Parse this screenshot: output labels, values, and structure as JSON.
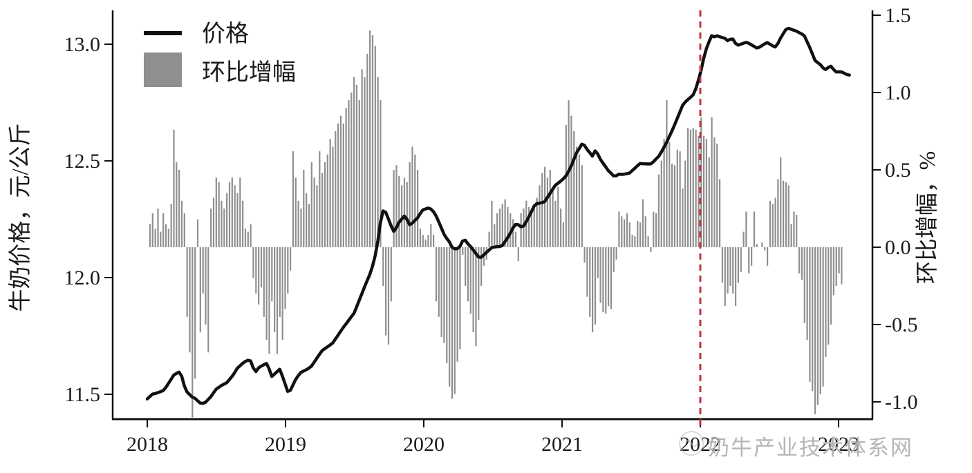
{
  "watermark": {
    "text": "奶牛产业技术体系网"
  },
  "chart_data": {
    "type": "composite",
    "subtype": [
      "line",
      "bar"
    ],
    "title": "",
    "left_axis": {
      "label": "牛奶价格，元/公斤",
      "tick_labels": [
        "13.0",
        "12.5",
        "12.0",
        "11.5"
      ],
      "ticks": [
        13.0,
        12.5,
        12.0,
        11.5
      ],
      "range": [
        11.39,
        13.15
      ]
    },
    "right_axis": {
      "label": "环比增幅，%",
      "tick_labels": [
        "1.5",
        "1.0",
        "0.5",
        "0.0",
        "-0.5",
        "-1.0"
      ],
      "ticks": [
        1.5,
        1.0,
        0.5,
        0.0,
        -0.5,
        -1.0
      ],
      "range": [
        -1.11,
        1.53
      ]
    },
    "x_axis": {
      "tick_labels": [
        "2018",
        "2019",
        "2020",
        "2021",
        "2022",
        "2023"
      ],
      "ticks": [
        2018,
        2019,
        2020,
        2021,
        2022,
        2023
      ],
      "range": [
        2017.75,
        2023.27
      ]
    },
    "legend": [
      {
        "label": "价格",
        "type": "line",
        "color": "#111111"
      },
      {
        "label": "环比增幅",
        "type": "bar",
        "color": "#8f8f8f"
      }
    ],
    "vline": {
      "x": 2022.0,
      "color": "#c2333d",
      "style": "dashed"
    },
    "grid": false,
    "price_series": {
      "name": "价格",
      "unit": "元/公斤",
      "points": [
        [
          2018.0,
          11.48
        ],
        [
          2018.06,
          11.5
        ],
        [
          2018.13,
          11.53
        ],
        [
          2018.2,
          11.58
        ],
        [
          2018.24,
          11.6
        ],
        [
          2018.28,
          11.52
        ],
        [
          2018.33,
          11.48
        ],
        [
          2018.39,
          11.46
        ],
        [
          2018.46,
          11.49
        ],
        [
          2018.54,
          11.54
        ],
        [
          2018.62,
          11.58
        ],
        [
          2018.7,
          11.64
        ],
        [
          2018.74,
          11.66
        ],
        [
          2018.78,
          11.59
        ],
        [
          2018.83,
          11.62
        ],
        [
          2018.87,
          11.64
        ],
        [
          2018.9,
          11.58
        ],
        [
          2018.96,
          11.6
        ],
        [
          2019.0,
          11.54
        ],
        [
          2019.02,
          11.51
        ],
        [
          2019.08,
          11.57
        ],
        [
          2019.16,
          11.61
        ],
        [
          2019.25,
          11.67
        ],
        [
          2019.33,
          11.72
        ],
        [
          2019.42,
          11.78
        ],
        [
          2019.5,
          11.86
        ],
        [
          2019.57,
          11.95
        ],
        [
          2019.62,
          12.03
        ],
        [
          2019.66,
          12.13
        ],
        [
          2019.69,
          12.25
        ],
        [
          2019.71,
          12.29
        ],
        [
          2019.75,
          12.24
        ],
        [
          2019.78,
          12.2
        ],
        [
          2019.82,
          12.24
        ],
        [
          2019.86,
          12.26
        ],
        [
          2019.9,
          12.22
        ],
        [
          2019.95,
          12.26
        ],
        [
          2019.99,
          12.29
        ],
        [
          2020.06,
          12.29
        ],
        [
          2020.1,
          12.26
        ],
        [
          2020.15,
          12.18
        ],
        [
          2020.21,
          12.12
        ],
        [
          2020.25,
          12.13
        ],
        [
          2020.29,
          12.17
        ],
        [
          2020.33,
          12.13
        ],
        [
          2020.4,
          12.09
        ],
        [
          2020.46,
          12.11
        ],
        [
          2020.52,
          12.13
        ],
        [
          2020.56,
          12.14
        ],
        [
          2020.62,
          12.18
        ],
        [
          2020.67,
          12.23
        ],
        [
          2020.71,
          12.22
        ],
        [
          2020.75,
          12.25
        ],
        [
          2020.81,
          12.31
        ],
        [
          2020.87,
          12.33
        ],
        [
          2020.94,
          12.38
        ],
        [
          2021.0,
          12.42
        ],
        [
          2021.06,
          12.47
        ],
        [
          2021.1,
          12.52
        ],
        [
          2021.15,
          12.58
        ],
        [
          2021.19,
          12.55
        ],
        [
          2021.22,
          12.52
        ],
        [
          2021.24,
          12.54
        ],
        [
          2021.28,
          12.5
        ],
        [
          2021.33,
          12.47
        ],
        [
          2021.38,
          12.43
        ],
        [
          2021.44,
          12.44
        ],
        [
          2021.5,
          12.46
        ],
        [
          2021.56,
          12.48
        ],
        [
          2021.62,
          12.49
        ],
        [
          2021.66,
          12.5
        ],
        [
          2021.71,
          12.52
        ],
        [
          2021.75,
          12.57
        ],
        [
          2021.79,
          12.63
        ],
        [
          2021.84,
          12.69
        ],
        [
          2021.88,
          12.74
        ],
        [
          2021.92,
          12.77
        ],
        [
          2021.96,
          12.8
        ],
        [
          2022.0,
          12.87
        ],
        [
          2022.04,
          12.97
        ],
        [
          2022.08,
          13.04
        ],
        [
          2022.12,
          13.04
        ],
        [
          2022.17,
          13.02
        ],
        [
          2022.2,
          13.01
        ],
        [
          2022.23,
          13.03
        ],
        [
          2022.27,
          13.0
        ],
        [
          2022.35,
          13.0
        ],
        [
          2022.42,
          12.99
        ],
        [
          2022.48,
          13.0
        ],
        [
          2022.54,
          12.99
        ],
        [
          2022.58,
          13.03
        ],
        [
          2022.62,
          13.06
        ],
        [
          2022.67,
          13.06
        ],
        [
          2022.71,
          13.06
        ],
        [
          2022.75,
          13.04
        ],
        [
          2022.79,
          12.98
        ],
        [
          2022.83,
          12.93
        ],
        [
          2022.87,
          12.92
        ],
        [
          2022.9,
          12.89
        ],
        [
          2022.94,
          12.9
        ],
        [
          2022.98,
          12.88
        ],
        [
          2023.02,
          12.89
        ],
        [
          2023.06,
          12.87
        ],
        [
          2023.09,
          12.86
        ]
      ]
    },
    "mom_growth_bars": {
      "name": "环比增幅",
      "unit": "%",
      "start_year": 2018.02,
      "step_weeks": 1,
      "values": [
        0.15,
        0.22,
        0.12,
        0.25,
        0.1,
        0.22,
        0.15,
        0.12,
        0.28,
        0.76,
        0.55,
        0.5,
        0.3,
        0.22,
        -0.45,
        -0.68,
        -1.1,
        -0.85,
        0.18,
        -0.55,
        -0.3,
        -0.5,
        -0.68,
        0.25,
        0.32,
        0.45,
        0.42,
        0.3,
        0.25,
        0.35,
        0.42,
        0.45,
        0.4,
        0.35,
        0.45,
        0.3,
        0.12,
        0.1,
        0.15,
        -0.2,
        -0.3,
        -0.37,
        -0.26,
        -0.45,
        -0.6,
        -0.69,
        -0.35,
        -0.55,
        -0.69,
        -0.45,
        -0.6,
        -0.4,
        -0.3,
        -0.15,
        0.62,
        0.45,
        0.3,
        0.25,
        0.5,
        0.35,
        0.28,
        0.55,
        0.45,
        0.4,
        0.62,
        0.48,
        0.55,
        0.6,
        0.7,
        0.65,
        0.75,
        0.8,
        0.85,
        0.8,
        0.9,
        0.95,
        1.0,
        1.1,
        1.05,
        0.95,
        1.15,
        1.1,
        1.25,
        1.4,
        1.37,
        1.3,
        1.1,
        0.95,
        -0.25,
        -0.57,
        -0.63,
        -0.35,
        0.5,
        0.53,
        0.46,
        0.4,
        0.45,
        0.42,
        0.55,
        0.65,
        0.6,
        0.5,
        0.12,
        0.08,
        0.05,
        0.08,
        0.15,
        0.08,
        -0.35,
        -0.45,
        -0.58,
        -0.62,
        -0.75,
        -0.9,
        -0.98,
        -0.95,
        -0.74,
        -0.66,
        -0.05,
        -0.25,
        -0.35,
        -0.43,
        -0.55,
        -0.64,
        -0.47,
        -0.25,
        -0.12,
        -0.08,
        0.1,
        0.3,
        0.15,
        0.22,
        0.25,
        0.28,
        0.31,
        0.26,
        0.22,
        0.18,
        0.1,
        -0.09,
        0.22,
        0.25,
        0.3,
        0.26,
        0.24,
        0.28,
        0.32,
        0.4,
        0.48,
        0.52,
        0.45,
        0.5,
        0.38,
        0.3,
        0.39,
        0.25,
        0.16,
        0.79,
        0.95,
        0.85,
        0.75,
        0.65,
        0.6,
        0.53,
        -0.1,
        -0.32,
        -0.45,
        -0.55,
        -0.5,
        -0.2,
        -0.36,
        -0.42,
        -0.43,
        -0.38,
        -0.4,
        -0.16,
        -0.08,
        0.23,
        0.2,
        0.18,
        0.22,
        0.16,
        0.08,
        0.07,
        0.17,
        0.16,
        0.31,
        0.2,
        0.07,
        -0.03,
        0.23,
        0.22,
        0.47,
        0.56,
        0.7,
        0.95,
        0.68,
        0.54,
        0.53,
        0.63,
        0.62,
        0.38,
        0.56,
        0.77,
        0.76,
        0.77,
        0.76,
        0.72,
        0.84,
        0.72,
        0.7,
        0.58,
        0.84,
        0.71,
        0.67,
        0.44,
        -0.23,
        -0.38,
        -0.3,
        -0.25,
        -0.3,
        -0.38,
        -0.23,
        -0.16,
        0.1,
        0.23,
        -0.17,
        -0.12,
        0.23,
        0.02,
        0.0,
        0.03,
        -0.02,
        -0.12,
        0.3,
        0.28,
        0.32,
        0.44,
        0.58,
        0.43,
        0.42,
        0.4,
        0.15,
        0.23,
        0.21,
        -0.17,
        -0.21,
        -0.49,
        -0.6,
        -0.87,
        -0.93,
        -1.08,
        -1.02,
        -0.95,
        -0.9,
        -0.71,
        -0.63,
        -0.5,
        -0.31,
        -0.25,
        -0.17,
        -0.24
      ]
    }
  }
}
